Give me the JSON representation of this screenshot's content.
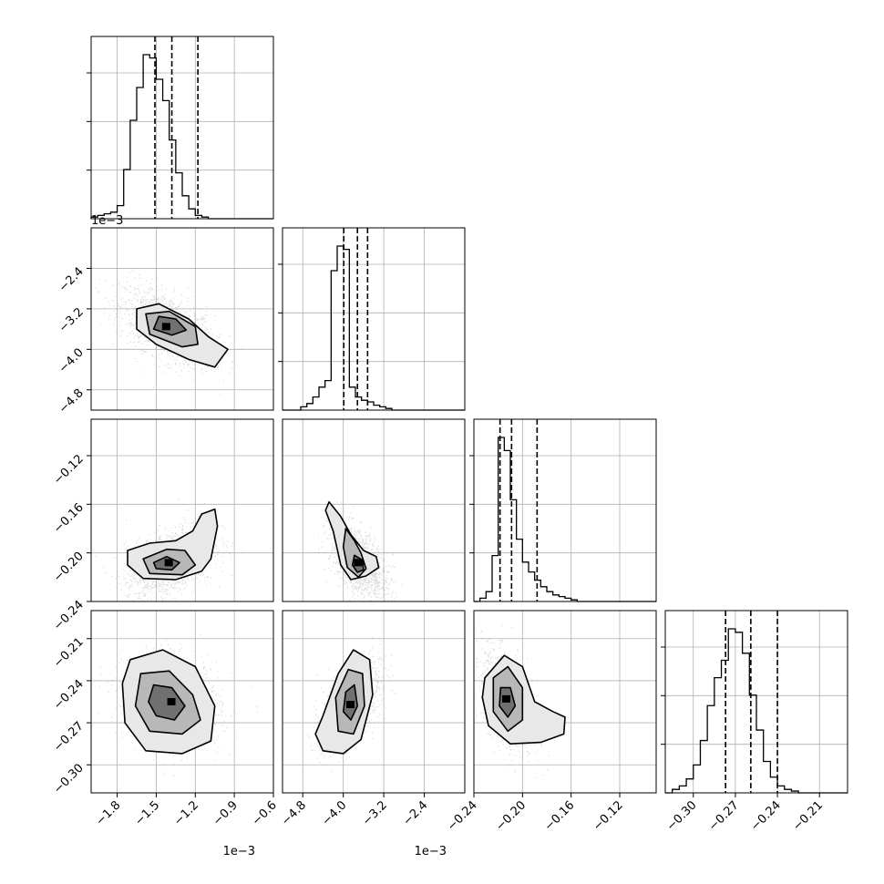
{
  "chart_data": {
    "type": "corner",
    "grid": true,
    "parameters": [
      {
        "axis_range": [
          -2.0,
          -0.6
        ],
        "offset_text": "1e−3",
        "ticks": [
          -1.8,
          -1.5,
          -1.2,
          -0.9,
          -0.6
        ],
        "tick_labels": [
          "−1.8",
          "−1.5",
          "−1.2",
          "−0.9",
          "−0.6"
        ],
        "quantiles": [
          -1.51,
          -1.38,
          -1.18
        ]
      },
      {
        "axis_range": [
          -5.2,
          -1.6
        ],
        "offset_text": "1e−3",
        "ticks": [
          -4.8,
          -4.0,
          -3.2,
          -2.4
        ],
        "tick_labels": [
          "−4.8",
          "−4.0",
          "−3.2",
          "−2.4"
        ],
        "quantiles": [
          -3.99,
          -3.72,
          -3.52
        ]
      },
      {
        "axis_range": [
          -0.24,
          -0.09
        ],
        "offset_text": "",
        "ticks": [
          -0.24,
          -0.2,
          -0.16,
          -0.12
        ],
        "tick_labels": [
          "−0.24",
          "−0.20",
          "−0.16",
          "−0.12"
        ],
        "quantiles": [
          -0.2185,
          -0.209,
          -0.188
        ]
      },
      {
        "axis_range": [
          -0.32,
          -0.19
        ],
        "offset_text": "",
        "ticks": [
          -0.3,
          -0.27,
          -0.24,
          -0.21
        ],
        "tick_labels": [
          "−0.30",
          "−0.27",
          "−0.24",
          "−0.21"
        ],
        "quantiles": [
          -0.277,
          -0.259,
          -0.24
        ]
      }
    ],
    "row_axis_ticks": [
      null,
      {
        "ticks": [
          -4.8,
          -4.0,
          -3.2,
          -2.4
        ],
        "tick_labels": [
          "−4.8",
          "−4.0",
          "−3.2",
          "−2.4"
        ],
        "axis_range": [
          -5.2,
          -1.6
        ]
      },
      {
        "ticks": [
          -0.24,
          -0.2,
          -0.16,
          -0.12
        ],
        "tick_labels": [
          "−0.24",
          "−0.20",
          "−0.16",
          "−0.12"
        ],
        "axis_range": [
          -0.24,
          -0.09
        ]
      },
      {
        "ticks": [
          -0.3,
          -0.27,
          -0.24,
          -0.21
        ],
        "tick_labels": [
          "−0.30",
          "−0.27",
          "−0.24",
          "−0.21"
        ],
        "axis_range": [
          -0.32,
          -0.19
        ]
      }
    ],
    "histograms": [
      {
        "edges_start": -2.0,
        "bin_width": 0.05,
        "counts": [
          1,
          2,
          3,
          4,
          8,
          30,
          60,
          80,
          100,
          98,
          85,
          72,
          48,
          28,
          14,
          6,
          2,
          1,
          0,
          0,
          0,
          0,
          0,
          0,
          0,
          0,
          0,
          0
        ]
      },
      {
        "edges_start": -5.2,
        "bin_width": 0.12,
        "counts": [
          0,
          0,
          0,
          2,
          4,
          8,
          14,
          18,
          85,
          100,
          98,
          14,
          8,
          6,
          5,
          3,
          2,
          1,
          0,
          0,
          0,
          0,
          0,
          0,
          0,
          0,
          0,
          0,
          0,
          0
        ]
      },
      {
        "edges_start": -0.24,
        "bin_width": 0.005,
        "counts": [
          0,
          2,
          6,
          28,
          100,
          92,
          62,
          38,
          24,
          18,
          13,
          9,
          6,
          4,
          3,
          2,
          1,
          0,
          0,
          0,
          0,
          0,
          0,
          0,
          0,
          0,
          0,
          0,
          0,
          0
        ]
      },
      {
        "edges_start": -0.32,
        "bin_width": 0.005,
        "counts": [
          0,
          2,
          4,
          8,
          16,
          30,
          50,
          66,
          76,
          94,
          92,
          80,
          56,
          36,
          18,
          9,
          4,
          2,
          1,
          0,
          0,
          0,
          0,
          0,
          0,
          0
        ]
      }
    ],
    "pairs": [
      {
        "row": 1,
        "col": 0,
        "center": [
          -1.42,
          -3.55
        ],
        "spread": [
          0.14,
          0.3
        ],
        "corr": -0.55,
        "contours": [
          [
            [
              -1.48,
              -3.35
            ],
            [
              -1.35,
              -3.4
            ],
            [
              -1.27,
              -3.62
            ],
            [
              -1.38,
              -3.72
            ],
            [
              -1.52,
              -3.6
            ]
          ],
          [
            [
              -1.58,
              -3.3
            ],
            [
              -1.4,
              -3.25
            ],
            [
              -1.2,
              -3.55
            ],
            [
              -1.18,
              -3.9
            ],
            [
              -1.3,
              -3.95
            ],
            [
              -1.55,
              -3.7
            ]
          ],
          [
            [
              -1.65,
              -3.2
            ],
            [
              -1.48,
              -3.1
            ],
            [
              -1.25,
              -3.4
            ],
            [
              -1.1,
              -3.75
            ],
            [
              -0.95,
              -4.0
            ],
            [
              -1.05,
              -4.35
            ],
            [
              -1.25,
              -4.2
            ],
            [
              -1.5,
              -3.9
            ],
            [
              -1.65,
              -3.6
            ]
          ]
        ]
      },
      {
        "row": 2,
        "col": 0,
        "center": [
          -1.4,
          -0.208
        ],
        "spread": [
          0.13,
          0.012
        ],
        "corr": 0.45,
        "contours": [
          [
            [
              -1.52,
              -0.208
            ],
            [
              -1.42,
              -0.203
            ],
            [
              -1.32,
              -0.208
            ],
            [
              -1.38,
              -0.214
            ],
            [
              -1.5,
              -0.213
            ]
          ],
          [
            [
              -1.6,
              -0.205
            ],
            [
              -1.42,
              -0.197
            ],
            [
              -1.28,
              -0.198
            ],
            [
              -1.2,
              -0.21
            ],
            [
              -1.3,
              -0.218
            ],
            [
              -1.55,
              -0.217
            ]
          ],
          [
            [
              -1.72,
              -0.198
            ],
            [
              -1.55,
              -0.192
            ],
            [
              -1.35,
              -0.19
            ],
            [
              -1.22,
              -0.182
            ],
            [
              -1.15,
              -0.168
            ],
            [
              -1.05,
              -0.164
            ],
            [
              -1.03,
              -0.178
            ],
            [
              -1.08,
              -0.205
            ],
            [
              -1.15,
              -0.215
            ],
            [
              -1.35,
              -0.222
            ],
            [
              -1.6,
              -0.221
            ],
            [
              -1.72,
              -0.21
            ]
          ]
        ]
      },
      {
        "row": 2,
        "col": 1,
        "center": [
          -3.7,
          -0.208
        ],
        "spread": [
          0.22,
          0.012
        ],
        "corr": -0.55,
        "contours": [
          [
            [
              -3.78,
              -0.202
            ],
            [
              -3.62,
              -0.206
            ],
            [
              -3.6,
              -0.214
            ],
            [
              -3.72,
              -0.216
            ],
            [
              -3.82,
              -0.21
            ]
          ],
          [
            [
              -3.95,
              -0.18
            ],
            [
              -3.78,
              -0.19
            ],
            [
              -3.65,
              -0.2
            ],
            [
              -3.55,
              -0.213
            ],
            [
              -3.7,
              -0.22
            ],
            [
              -3.92,
              -0.212
            ],
            [
              -4.0,
              -0.195
            ]
          ],
          [
            [
              -4.28,
              -0.158
            ],
            [
              -4.05,
              -0.17
            ],
            [
              -3.85,
              -0.185
            ],
            [
              -3.6,
              -0.198
            ],
            [
              -3.35,
              -0.203
            ],
            [
              -3.3,
              -0.212
            ],
            [
              -3.55,
              -0.219
            ],
            [
              -3.85,
              -0.222
            ],
            [
              -4.05,
              -0.21
            ],
            [
              -4.2,
              -0.182
            ],
            [
              -4.35,
              -0.165
            ]
          ]
        ]
      },
      {
        "row": 3,
        "col": 0,
        "center": [
          -1.38,
          -0.255
        ],
        "spread": [
          0.14,
          0.012
        ],
        "corr": -0.15,
        "contours": [
          [
            [
              -1.52,
              -0.243
            ],
            [
              -1.38,
              -0.245
            ],
            [
              -1.28,
              -0.258
            ],
            [
              -1.36,
              -0.268
            ],
            [
              -1.5,
              -0.265
            ],
            [
              -1.56,
              -0.255
            ]
          ],
          [
            [
              -1.62,
              -0.235
            ],
            [
              -1.4,
              -0.233
            ],
            [
              -1.22,
              -0.25
            ],
            [
              -1.16,
              -0.268
            ],
            [
              -1.3,
              -0.278
            ],
            [
              -1.55,
              -0.276
            ],
            [
              -1.66,
              -0.258
            ]
          ],
          [
            [
              -1.7,
              -0.225
            ],
            [
              -1.45,
              -0.218
            ],
            [
              -1.2,
              -0.23
            ],
            [
              -1.05,
              -0.258
            ],
            [
              -1.08,
              -0.283
            ],
            [
              -1.3,
              -0.292
            ],
            [
              -1.58,
              -0.29
            ],
            [
              -1.74,
              -0.27
            ],
            [
              -1.76,
              -0.242
            ]
          ]
        ]
      },
      {
        "row": 3,
        "col": 1,
        "center": [
          -3.85,
          -0.257
        ],
        "spread": [
          0.22,
          0.012
        ],
        "corr": 0.55,
        "contours": [
          [
            [
              -3.95,
              -0.248
            ],
            [
              -3.78,
              -0.243
            ],
            [
              -3.72,
              -0.258
            ],
            [
              -3.85,
              -0.268
            ],
            [
              -4.0,
              -0.262
            ]
          ],
          [
            [
              -4.15,
              -0.252
            ],
            [
              -3.9,
              -0.232
            ],
            [
              -3.62,
              -0.235
            ],
            [
              -3.58,
              -0.258
            ],
            [
              -3.8,
              -0.278
            ],
            [
              -4.1,
              -0.276
            ]
          ],
          [
            [
              -4.4,
              -0.265
            ],
            [
              -4.1,
              -0.235
            ],
            [
              -3.8,
              -0.218
            ],
            [
              -3.48,
              -0.225
            ],
            [
              -3.42,
              -0.25
            ],
            [
              -3.65,
              -0.282
            ],
            [
              -4.0,
              -0.292
            ],
            [
              -4.4,
              -0.29
            ],
            [
              -4.55,
              -0.278
            ]
          ]
        ]
      },
      {
        "row": 3,
        "col": 2,
        "center": [
          -0.213,
          -0.253
        ],
        "spread": [
          0.008,
          0.013
        ],
        "corr": -0.45,
        "contours": [
          [
            [
              -0.218,
              -0.245
            ],
            [
              -0.21,
              -0.245
            ],
            [
              -0.206,
              -0.258
            ],
            [
              -0.212,
              -0.266
            ],
            [
              -0.219,
              -0.258
            ]
          ],
          [
            [
              -0.224,
              -0.238
            ],
            [
              -0.212,
              -0.23
            ],
            [
              -0.2,
              -0.245
            ],
            [
              -0.2,
              -0.268
            ],
            [
              -0.212,
              -0.276
            ],
            [
              -0.224,
              -0.262
            ]
          ],
          [
            [
              -0.231,
              -0.238
            ],
            [
              -0.215,
              -0.222
            ],
            [
              -0.2,
              -0.23
            ],
            [
              -0.19,
              -0.255
            ],
            [
              -0.175,
              -0.262
            ],
            [
              -0.165,
              -0.266
            ],
            [
              -0.166,
              -0.278
            ],
            [
              -0.185,
              -0.284
            ],
            [
              -0.21,
              -0.285
            ],
            [
              -0.228,
              -0.272
            ],
            [
              -0.233,
              -0.252
            ]
          ]
        ]
      }
    ]
  }
}
